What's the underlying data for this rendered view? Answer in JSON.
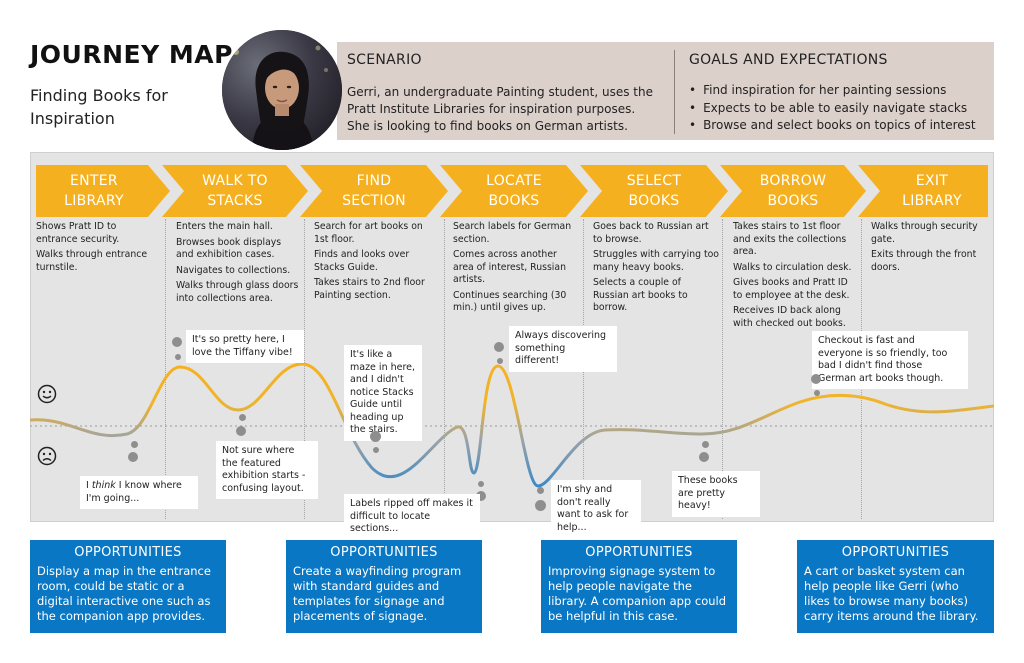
{
  "header": {
    "title": "JOURNEY MAP",
    "subtitle": "Finding Books for Inspiration"
  },
  "scenario": {
    "heading": "SCENARIO",
    "text": "Gerri, an undergraduate Painting student, uses the Pratt Institute Libraries for inspiration purposes. She is looking to find books on German artists."
  },
  "goals": {
    "heading": "GOALS AND EXPECTATIONS",
    "items": [
      "Find inspiration for her painting sessions",
      "Expects to be able to easily navigate stacks",
      "Browse and select books on topics of interest"
    ]
  },
  "colors": {
    "accent": "#f5b01f",
    "positive": "#f5b01f",
    "negative": "#2f86c8",
    "opportunity": "#0a77c4",
    "panel": "#dcd0cb",
    "board": "#e4e4e4"
  },
  "stages": [
    {
      "label_line1": "ENTER",
      "label_line2": "LIBRARY",
      "actions": [
        "Shows Pratt ID to entrance security.",
        "Walks through entrance turnstile."
      ]
    },
    {
      "label_line1": "WALK TO",
      "label_line2": "STACKS",
      "actions": [
        "Enters the main hall.",
        "Browses book displays and exhibition cases.",
        "Navigates to collections.",
        "Walks through glass doors into collections area."
      ]
    },
    {
      "label_line1": "FIND",
      "label_line2": "SECTION",
      "actions": [
        "Search for art books on 1st floor.",
        "Finds and looks over Stacks Guide.",
        "Takes stairs to 2nd floor Painting section."
      ]
    },
    {
      "label_line1": "LOCATE",
      "label_line2": "BOOKS",
      "actions": [
        "Search labels for German section.",
        "Comes across another area of interest, Russian artists.",
        "Continues searching (30 min.) until gives up."
      ]
    },
    {
      "label_line1": "SELECT",
      "label_line2": "BOOKS",
      "actions": [
        "Goes back to Russian art to browse.",
        "Struggles with carrying too many heavy books.",
        "Selects a couple of Russian art books to borrow."
      ]
    },
    {
      "label_line1": "BORROW",
      "label_line2": "BOOKS",
      "actions": [
        "Takes stairs to 1st floor and exits the collections area.",
        "Walks to circulation desk.",
        "Gives books and Pratt ID to employee at the desk.",
        "Receives ID back along with checked out books."
      ]
    },
    {
      "label_line1": "EXIT",
      "label_line2": "LIBRARY",
      "actions": [
        "Walks through security gate.",
        "Exits through the front doors."
      ]
    }
  ],
  "emotions": {
    "happy_icon": "smiley-face-icon",
    "sad_icon": "sad-face-icon",
    "thoughts": [
      {
        "pre": "I ",
        "em": "think",
        "post": " I know where I'm going..."
      },
      {
        "text": "It's so pretty here, I love the Tiffany vibe!"
      },
      {
        "text": "Not sure where the featured exhibition starts - confusing layout."
      },
      {
        "text": "It's like a maze in here, and I didn't notice Stacks Guide until heading up the stairs."
      },
      {
        "text": "Labels ripped off makes it difficult to locate sections..."
      },
      {
        "text": "Always discovering something different!"
      },
      {
        "text": "I'm shy and don't really want to ask for help..."
      },
      {
        "text": "These books are pretty heavy!"
      },
      {
        "text": "Checkout is fast and everyone is so friendly, too bad I didn't find those German art books though."
      }
    ]
  },
  "opportunities": [
    {
      "heading": "OPPORTUNITIES",
      "text": "Display a map in the entrance room, could be static or a digital interactive one such as the companion app provides."
    },
    {
      "heading": "OPPORTUNITIES",
      "text": "Create a wayfinding program with standard guides and templates for signage and placements of signage."
    },
    {
      "heading": "OPPORTUNITIES",
      "text": "Improving signage system to help people navigate the library. A companion app could be helpful in this case."
    },
    {
      "heading": "OPPORTUNITIES",
      "text": "A cart or basket system can help people like Gerri (who likes to browse many books) carry items around the library."
    }
  ]
}
